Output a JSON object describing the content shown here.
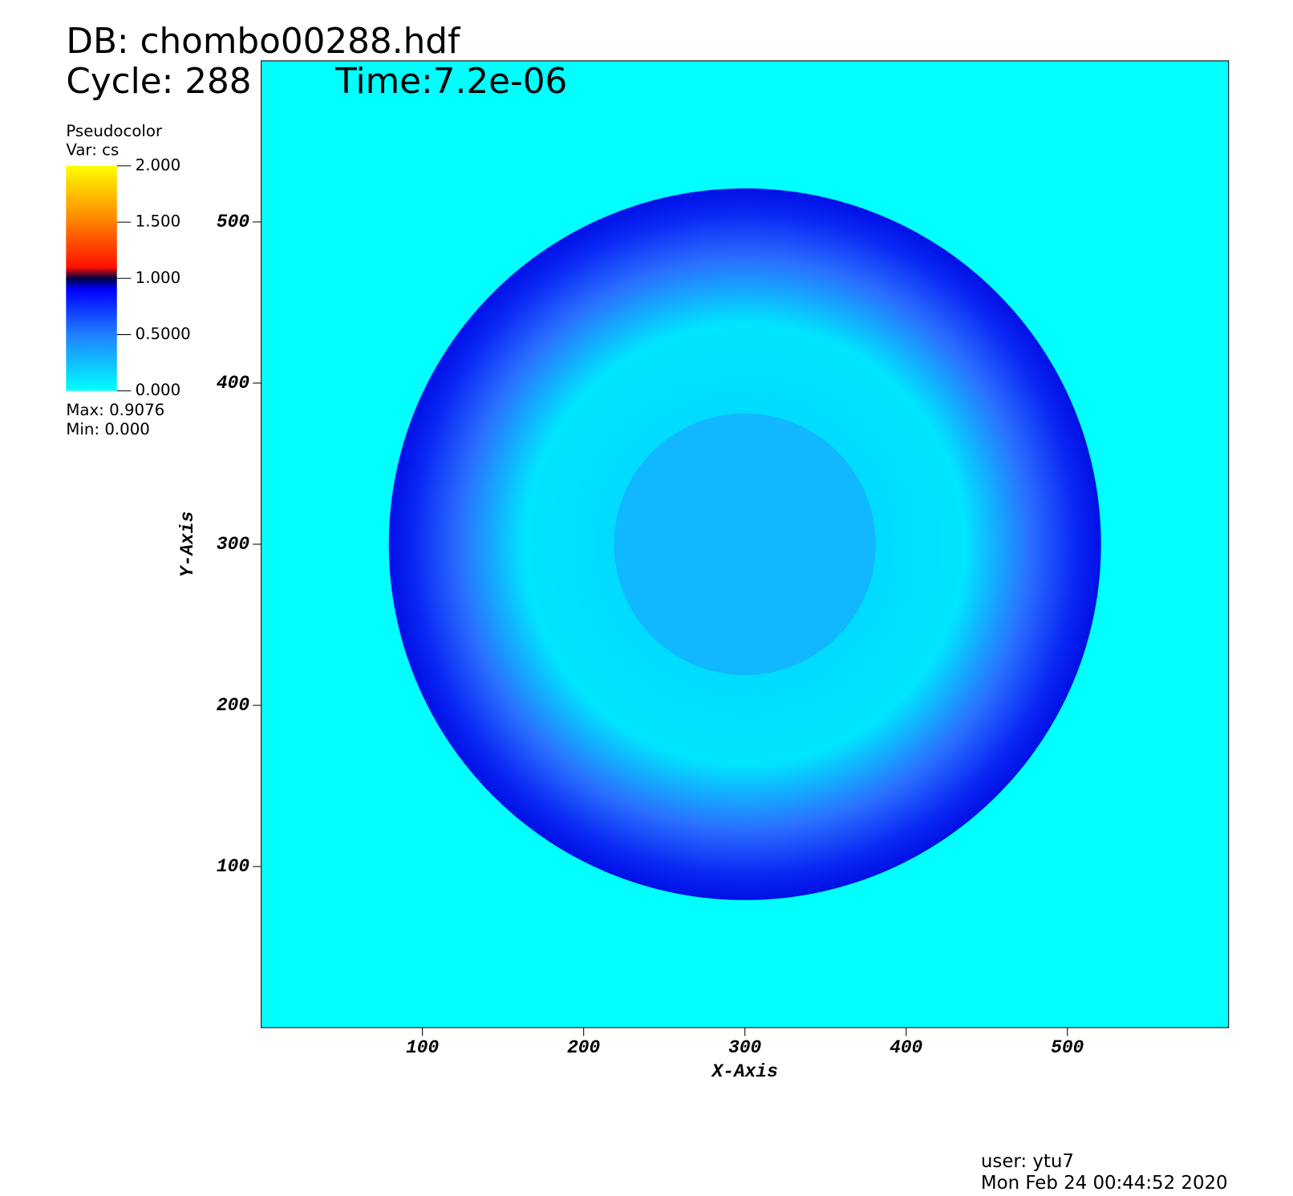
{
  "chart_data": {
    "type": "pseudocolor",
    "header": {
      "database": "DB: chombo00288.hdf",
      "cycle": "Cycle: 288",
      "time": "Time:7.2e-06"
    },
    "legend": {
      "plot": "Pseudocolor",
      "variable": "Var: cs",
      "ticks": [
        {
          "value": 2,
          "label": "2.000"
        },
        {
          "value": 1.5,
          "label": "1.500"
        },
        {
          "value": 1,
          "label": "1.000"
        },
        {
          "value": 0.5,
          "label": "0.5000"
        },
        {
          "value": 0,
          "label": "0.000"
        }
      ],
      "max": "Max:  0.9076",
      "min": "Min:  0.000"
    },
    "x_label": "X-Axis",
    "y_label": "Y-Axis",
    "xlim": [
      0,
      600
    ],
    "ylim": [
      0,
      600
    ],
    "xticks": [
      100,
      200,
      300,
      400,
      500
    ],
    "yticks": [
      100,
      200,
      300,
      400,
      500
    ],
    "footer": {
      "user": "user: ytu7",
      "date": "Mon Feb 24 00:44:52 2020"
    }
  }
}
